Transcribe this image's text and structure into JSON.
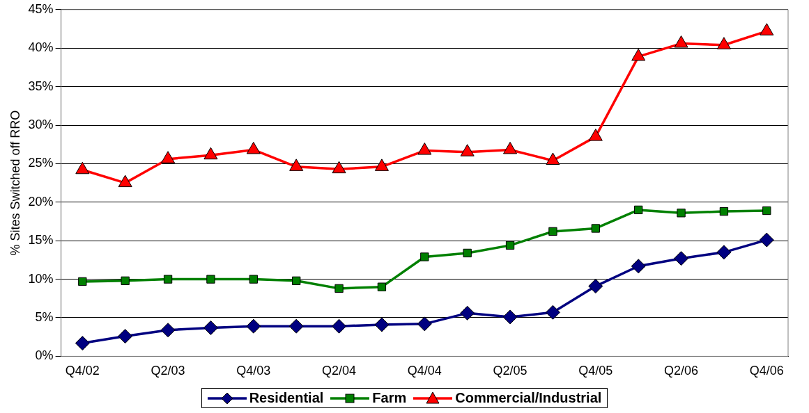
{
  "chart_data": {
    "type": "line",
    "ylabel": "% Sites Switched off RRO",
    "categories": [
      "Q4/02",
      null,
      "Q2/03",
      null,
      "Q4/03",
      null,
      "Q2/04",
      null,
      "Q4/04",
      null,
      "Q2/05",
      null,
      "Q4/05",
      null,
      "Q2/06",
      null,
      "Q4/06"
    ],
    "series": [
      {
        "name": "Residential",
        "color": "#000080",
        "marker": "diamond",
        "values": [
          1.7,
          2.6,
          3.4,
          3.7,
          3.9,
          3.9,
          3.9,
          4.1,
          4.2,
          5.6,
          5.1,
          5.7,
          9.1,
          11.7,
          12.7,
          13.5,
          15.1
        ]
      },
      {
        "name": "Farm",
        "color": "#008000",
        "marker": "square",
        "values": [
          9.7,
          9.8,
          10.0,
          10.0,
          10.0,
          9.8,
          8.8,
          9.0,
          12.9,
          13.4,
          14.4,
          16.2,
          16.6,
          19.0,
          18.6,
          18.8,
          18.9
        ]
      },
      {
        "name": "Commercial/Industrial",
        "color": "#ff0000",
        "marker": "triangle",
        "values": [
          24.2,
          22.5,
          25.6,
          26.1,
          26.8,
          24.6,
          24.3,
          24.6,
          26.7,
          26.5,
          26.8,
          25.4,
          28.5,
          38.9,
          40.6,
          40.4,
          42.2
        ]
      }
    ],
    "ylim": [
      0,
      45
    ],
    "yticks": [
      {
        "value": 0,
        "label": "0%"
      },
      {
        "value": 5,
        "label": "5%"
      },
      {
        "value": 10,
        "label": "10%"
      },
      {
        "value": 15,
        "label": "15%"
      },
      {
        "value": 20,
        "label": "20%"
      },
      {
        "value": 25,
        "label": "25%"
      },
      {
        "value": 30,
        "label": "30%"
      },
      {
        "value": 35,
        "label": "35%"
      },
      {
        "value": 40,
        "label": "40%"
      },
      {
        "value": 45,
        "label": "45%"
      }
    ],
    "grid": "y",
    "legend": "bottom",
    "line_style": "solid"
  }
}
